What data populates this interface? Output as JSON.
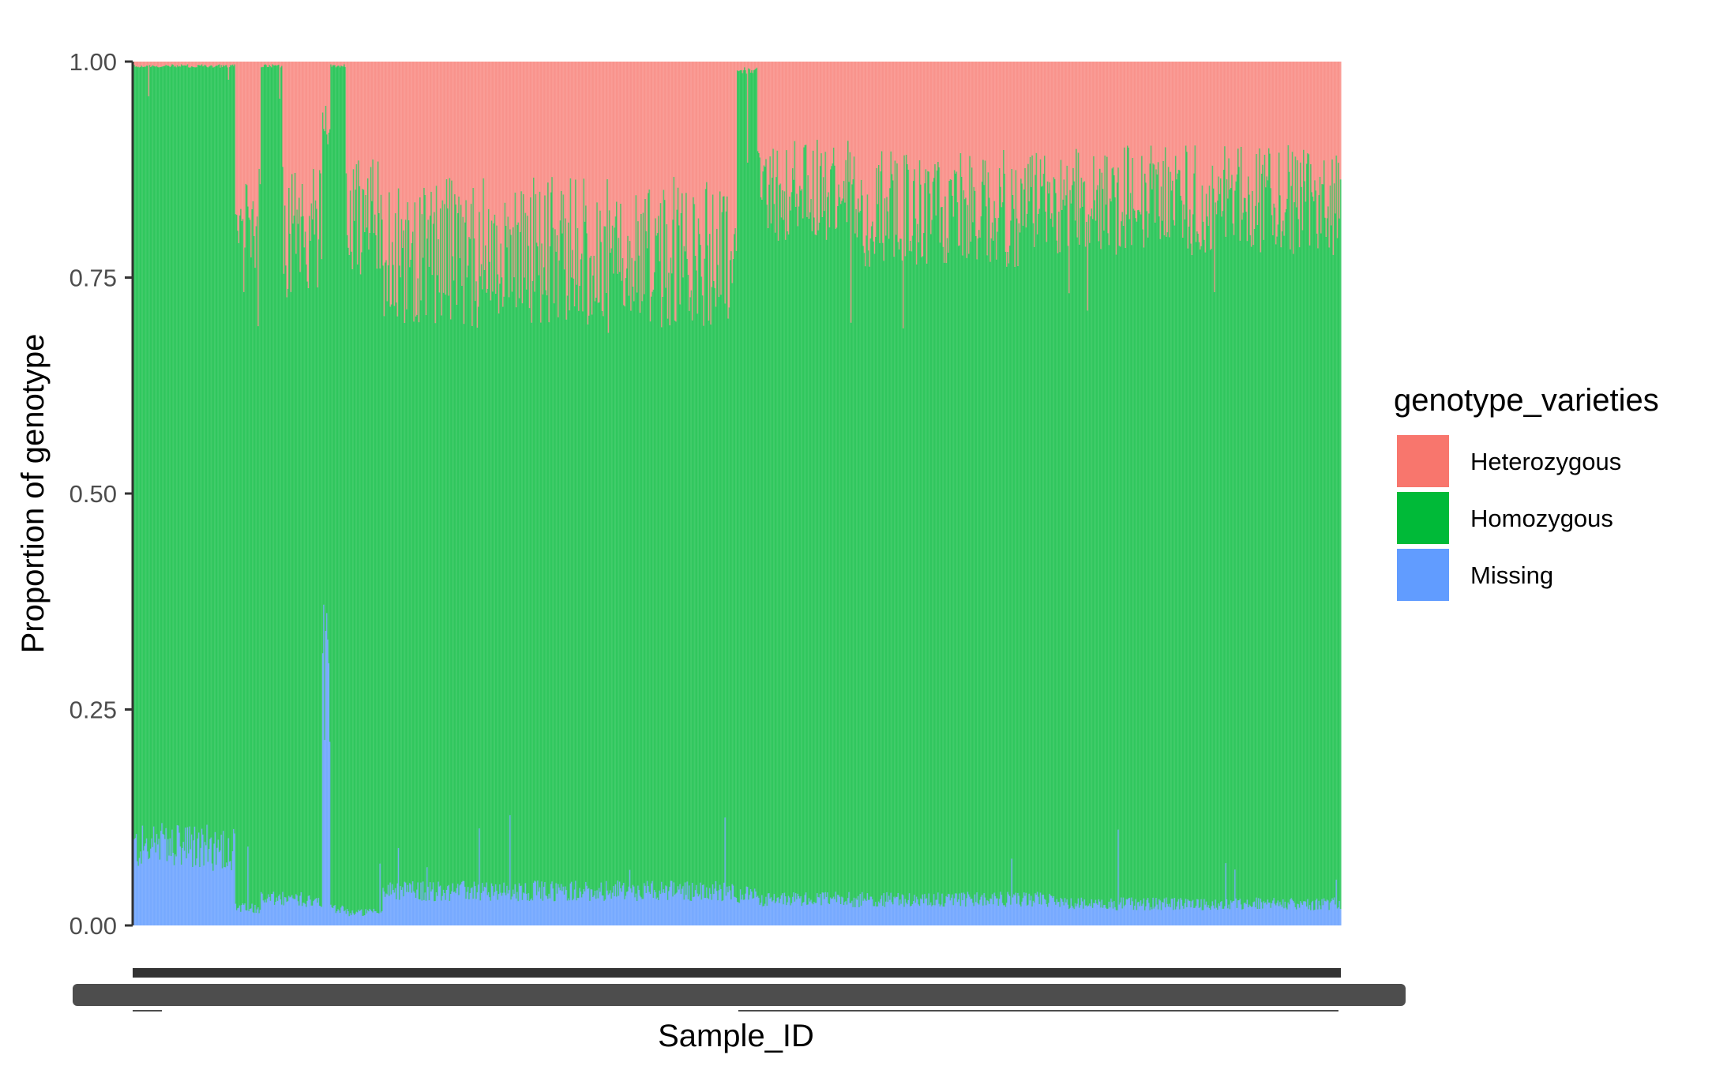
{
  "chart_data": {
    "type": "bar",
    "stacked": true,
    "normalized": true,
    "xlabel": "Sample_ID",
    "ylabel": "Proportion of genotype",
    "ylim": [
      0,
      1
    ],
    "yticks": [
      "0.00",
      "0.25",
      "0.50",
      "0.75",
      "1.00"
    ],
    "grid": false,
    "legend": {
      "title": "genotype_varieties",
      "placement": "right",
      "entries": [
        {
          "name": "Heterozygous",
          "color": "#F8766D"
        },
        {
          "name": "Homozygous",
          "color": "#00BA38"
        },
        {
          "name": "Missing",
          "color": "#619CFF"
        }
      ]
    },
    "sample_count": 1180,
    "segments": [
      {
        "from": 0,
        "to": 100,
        "missing": 0.09,
        "heterozygous": 0.005
      },
      {
        "from": 100,
        "to": 125,
        "missing": 0.02,
        "heterozygous": 0.2
      },
      {
        "from": 125,
        "to": 147,
        "missing": 0.03,
        "heterozygous": 0.005
      },
      {
        "from": 147,
        "to": 185,
        "missing": 0.03,
        "heterozygous": 0.2
      },
      {
        "from": 185,
        "to": 193,
        "missing": 0.3,
        "heterozygous": 0.08
      },
      {
        "from": 193,
        "to": 208,
        "missing": 0.02,
        "heterozygous": 0.005
      },
      {
        "from": 208,
        "to": 244,
        "missing": 0.015,
        "heterozygous": 0.18
      },
      {
        "from": 244,
        "to": 590,
        "missing": 0.04,
        "heterozygous": 0.22
      },
      {
        "from": 590,
        "to": 610,
        "missing": 0.035,
        "heterozygous": 0.01
      },
      {
        "from": 610,
        "to": 700,
        "missing": 0.03,
        "heterozygous": 0.15
      },
      {
        "from": 700,
        "to": 900,
        "missing": 0.03,
        "heterozygous": 0.17
      },
      {
        "from": 900,
        "to": 1180,
        "missing": 0.025,
        "heterozygous": 0.16
      }
    ]
  }
}
